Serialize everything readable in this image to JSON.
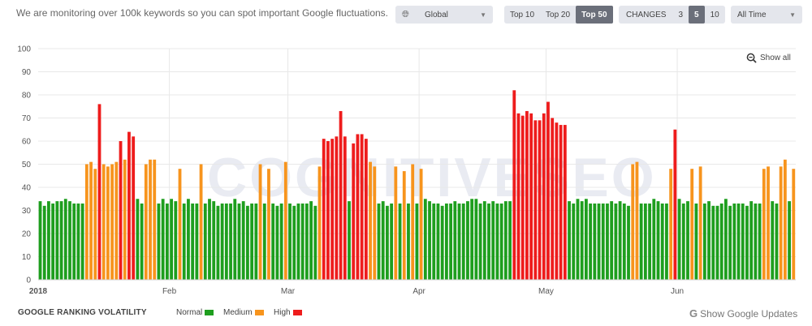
{
  "header": {
    "intro_text": "We are monitoring over 100k keywords so you can spot important Google fluctuations.",
    "region": {
      "value": "Global",
      "icon": "globe-icon"
    },
    "top_options": [
      "Top 10",
      "Top 20",
      "Top 50"
    ],
    "top_selected": "Top 50",
    "changes": {
      "label": "CHANGES",
      "options": [
        "3",
        "5",
        "10"
      ],
      "selected": "5"
    },
    "period": {
      "value": "All Time"
    }
  },
  "watermark": "COGNITIVESEO",
  "show_all_label": "Show all",
  "footer": {
    "title": "GOOGLE RANKING VOLATILITY",
    "show_updates_label": "Show Google Updates"
  },
  "colors": {
    "normal": "#1e9e1e",
    "medium": "#f7941d",
    "high": "#ee1c1c",
    "grid": "#e8e8e8",
    "text": "#555555"
  },
  "chart_data": {
    "type": "bar",
    "ylim": [
      0,
      100
    ],
    "yticks": [
      0,
      10,
      20,
      30,
      40,
      50,
      60,
      70,
      80,
      90,
      100
    ],
    "x_tick_labels": [
      {
        "label": "2018",
        "index": 0
      },
      {
        "label": "Feb",
        "index": 31
      },
      {
        "label": "Mar",
        "index": 59
      },
      {
        "label": "Apr",
        "index": 90
      },
      {
        "label": "May",
        "index": 120
      },
      {
        "label": "Jun",
        "index": 151
      }
    ],
    "legend": [
      {
        "name": "Normal",
        "level": "normal"
      },
      {
        "name": "Medium",
        "level": "medium"
      },
      {
        "name": "High",
        "level": "high"
      }
    ],
    "values": [
      34,
      32,
      34,
      33,
      34,
      34,
      35,
      34,
      33,
      33,
      33,
      50,
      51,
      48,
      76,
      50,
      49,
      50,
      51,
      60,
      52,
      64,
      62,
      35,
      33,
      50,
      52,
      52,
      33,
      35,
      33,
      35,
      34,
      48,
      33,
      35,
      33,
      33,
      50,
      33,
      35,
      34,
      32,
      33,
      33,
      33,
      35,
      33,
      34,
      32,
      33,
      33,
      50,
      33,
      48,
      33,
      32,
      33,
      51,
      33,
      32,
      33,
      33,
      33,
      34,
      32,
      49,
      61,
      60,
      61,
      62,
      73,
      62,
      34,
      59,
      63,
      63,
      61,
      51,
      49,
      33,
      34,
      32,
      33,
      49,
      33,
      47,
      33,
      50,
      33,
      48,
      35,
      34,
      33,
      33,
      32,
      33,
      33,
      34,
      33,
      33,
      34,
      35,
      35,
      33,
      34,
      33,
      34,
      33,
      33,
      34,
      34,
      82,
      72,
      71,
      73,
      72,
      69,
      69,
      72,
      77,
      70,
      68,
      67,
      67,
      34,
      33,
      35,
      34,
      35,
      33,
      33,
      33,
      33,
      33,
      34,
      33,
      34,
      33,
      32,
      50,
      51,
      33,
      33,
      33,
      35,
      34,
      33,
      33,
      48,
      65,
      35,
      33,
      34,
      48,
      33,
      49,
      33,
      34,
      32,
      32,
      33,
      35,
      32,
      33,
      33,
      33,
      32,
      34,
      33,
      33,
      48,
      49,
      34,
      33,
      49,
      52,
      34,
      48
    ],
    "levels": [
      "normal",
      "normal",
      "normal",
      "normal",
      "normal",
      "normal",
      "normal",
      "normal",
      "normal",
      "normal",
      "normal",
      "medium",
      "medium",
      "medium",
      "high",
      "medium",
      "medium",
      "medium",
      "medium",
      "high",
      "medium",
      "high",
      "high",
      "normal",
      "normal",
      "medium",
      "medium",
      "medium",
      "normal",
      "normal",
      "normal",
      "normal",
      "normal",
      "medium",
      "normal",
      "normal",
      "normal",
      "normal",
      "medium",
      "normal",
      "normal",
      "normal",
      "normal",
      "normal",
      "normal",
      "normal",
      "normal",
      "normal",
      "normal",
      "normal",
      "normal",
      "normal",
      "medium",
      "normal",
      "medium",
      "normal",
      "normal",
      "normal",
      "medium",
      "normal",
      "normal",
      "normal",
      "normal",
      "normal",
      "normal",
      "normal",
      "medium",
      "high",
      "high",
      "high",
      "high",
      "high",
      "high",
      "normal",
      "high",
      "high",
      "high",
      "high",
      "medium",
      "medium",
      "normal",
      "normal",
      "normal",
      "normal",
      "medium",
      "normal",
      "medium",
      "normal",
      "medium",
      "normal",
      "medium",
      "normal",
      "normal",
      "normal",
      "normal",
      "normal",
      "normal",
      "normal",
      "normal",
      "normal",
      "normal",
      "normal",
      "normal",
      "normal",
      "normal",
      "normal",
      "normal",
      "normal",
      "normal",
      "normal",
      "normal",
      "normal",
      "high",
      "high",
      "high",
      "high",
      "high",
      "high",
      "high",
      "high",
      "high",
      "high",
      "high",
      "high",
      "high",
      "normal",
      "normal",
      "normal",
      "normal",
      "normal",
      "normal",
      "normal",
      "normal",
      "normal",
      "normal",
      "normal",
      "normal",
      "normal",
      "normal",
      "normal",
      "medium",
      "medium",
      "normal",
      "normal",
      "normal",
      "normal",
      "normal",
      "normal",
      "normal",
      "medium",
      "high",
      "normal",
      "normal",
      "normal",
      "medium",
      "normal",
      "medium",
      "normal",
      "normal",
      "normal",
      "normal",
      "normal",
      "normal",
      "normal",
      "normal",
      "normal",
      "normal",
      "normal",
      "normal",
      "normal",
      "normal",
      "medium",
      "medium",
      "normal",
      "normal",
      "medium",
      "medium",
      "normal",
      "medium"
    ]
  }
}
